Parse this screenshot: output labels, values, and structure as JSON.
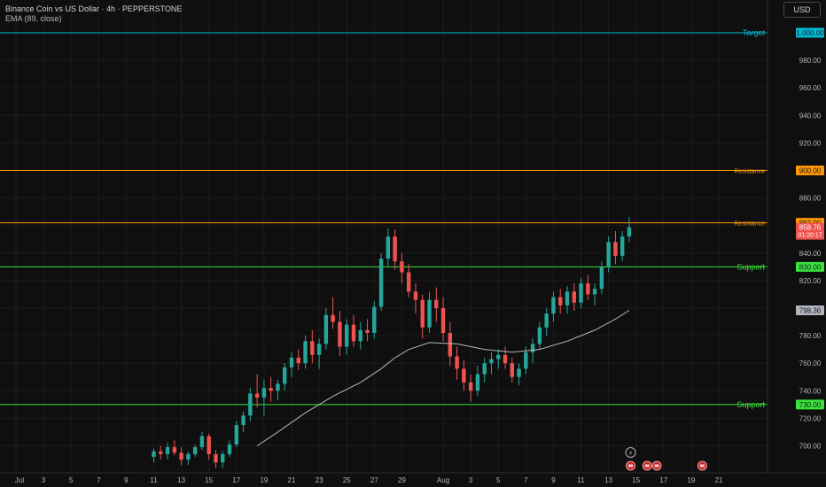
{
  "header": {
    "title": "Binance Coin vs US Dollar · 4h · PEPPERSTONE",
    "indicator": "EMA (89, close)",
    "currency_button": "USD"
  },
  "colors": {
    "background": "#0f0f0f",
    "grid": "#1c1c1c",
    "up": "#26a69a",
    "down": "#ef5350",
    "ema": "#d1d4dc",
    "target": "#00bcd4",
    "resistance": "#ff9800",
    "support": "#39e43a"
  },
  "chart_data": {
    "type": "candlestick",
    "symbol": "Binance Coin vs US Dollar",
    "interval": "4h",
    "ylim": [
      690,
      1005
    ],
    "y_ticks": [
      700,
      720,
      740,
      760,
      780,
      800,
      820,
      840,
      860,
      880,
      900,
      920,
      940,
      960,
      980
    ],
    "x_ticks": [
      "Jul",
      "3",
      "5",
      "7",
      "9",
      "11",
      "13",
      "15",
      "17",
      "19",
      "21",
      "23",
      "25",
      "27",
      "29",
      "Aug",
      "3",
      "5",
      "7",
      "9",
      "11",
      "13",
      "15",
      "17",
      "19",
      "21"
    ],
    "levels": [
      {
        "label": "Target",
        "value": 1000,
        "value_label": "1,000.00",
        "kind": "target"
      },
      {
        "label": "Resistance",
        "value": 900,
        "value_label": "900.00",
        "kind": "resistance"
      },
      {
        "label": "Resistance",
        "value": 862,
        "value_label": "862.00",
        "kind": "resistance"
      },
      {
        "label": "Support",
        "value": 830,
        "value_label": "830.00",
        "kind": "support"
      },
      {
        "label": "Support",
        "value": 730,
        "value_label": "730.00",
        "kind": "support"
      }
    ],
    "ema": {
      "name": "EMA (89, close)",
      "last_value": 798.36,
      "last_label": "798.36",
      "points": [
        [
          18.5,
          700
        ],
        [
          20,
          710
        ],
        [
          22,
          724
        ],
        [
          24,
          736
        ],
        [
          26,
          746
        ],
        [
          27.5,
          756
        ],
        [
          28.5,
          764
        ],
        [
          29.5,
          770
        ],
        [
          31,
          775
        ],
        [
          33,
          774
        ],
        [
          35,
          770
        ],
        [
          37,
          768
        ],
        [
          39,
          770
        ],
        [
          41,
          776
        ],
        [
          43,
          784
        ],
        [
          44.5,
          792
        ],
        [
          45.5,
          798.4
        ]
      ]
    },
    "last_price": {
      "value": 858.76,
      "label": "858.76",
      "countdown": "01:20:17"
    },
    "candles": [
      {
        "d": 11.0,
        "o": 692,
        "h": 698,
        "l": 688,
        "c": 696
      },
      {
        "d": 11.5,
        "o": 696,
        "h": 700,
        "l": 690,
        "c": 694
      },
      {
        "d": 12.0,
        "o": 694,
        "h": 702,
        "l": 690,
        "c": 699
      },
      {
        "d": 12.5,
        "o": 699,
        "h": 704,
        "l": 693,
        "c": 695
      },
      {
        "d": 13.0,
        "o": 695,
        "h": 699,
        "l": 686,
        "c": 690
      },
      {
        "d": 13.5,
        "o": 690,
        "h": 696,
        "l": 686,
        "c": 694
      },
      {
        "d": 14.0,
        "o": 694,
        "h": 701,
        "l": 692,
        "c": 699
      },
      {
        "d": 14.5,
        "o": 699,
        "h": 710,
        "l": 697,
        "c": 707
      },
      {
        "d": 15.0,
        "o": 707,
        "h": 709,
        "l": 690,
        "c": 694
      },
      {
        "d": 15.5,
        "o": 694,
        "h": 697,
        "l": 684,
        "c": 688
      },
      {
        "d": 16.0,
        "o": 688,
        "h": 696,
        "l": 684,
        "c": 694
      },
      {
        "d": 16.5,
        "o": 694,
        "h": 704,
        "l": 692,
        "c": 701
      },
      {
        "d": 17.0,
        "o": 701,
        "h": 718,
        "l": 699,
        "c": 715
      },
      {
        "d": 17.5,
        "o": 715,
        "h": 725,
        "l": 710,
        "c": 722
      },
      {
        "d": 18.0,
        "o": 722,
        "h": 742,
        "l": 718,
        "c": 738
      },
      {
        "d": 18.5,
        "o": 738,
        "h": 752,
        "l": 728,
        "c": 735
      },
      {
        "d": 19.0,
        "o": 735,
        "h": 748,
        "l": 722,
        "c": 742
      },
      {
        "d": 19.5,
        "o": 742,
        "h": 750,
        "l": 732,
        "c": 740
      },
      {
        "d": 20.0,
        "o": 740,
        "h": 748,
        "l": 733,
        "c": 745
      },
      {
        "d": 20.5,
        "o": 745,
        "h": 760,
        "l": 740,
        "c": 757
      },
      {
        "d": 21.0,
        "o": 757,
        "h": 768,
        "l": 750,
        "c": 764
      },
      {
        "d": 21.5,
        "o": 764,
        "h": 770,
        "l": 755,
        "c": 760
      },
      {
        "d": 22.0,
        "o": 760,
        "h": 780,
        "l": 756,
        "c": 776
      },
      {
        "d": 22.5,
        "o": 776,
        "h": 784,
        "l": 760,
        "c": 766
      },
      {
        "d": 23.0,
        "o": 766,
        "h": 778,
        "l": 756,
        "c": 774
      },
      {
        "d": 23.5,
        "o": 774,
        "h": 800,
        "l": 770,
        "c": 795
      },
      {
        "d": 24.0,
        "o": 795,
        "h": 808,
        "l": 785,
        "c": 790
      },
      {
        "d": 24.5,
        "o": 790,
        "h": 798,
        "l": 765,
        "c": 772
      },
      {
        "d": 25.0,
        "o": 772,
        "h": 792,
        "l": 766,
        "c": 788
      },
      {
        "d": 25.5,
        "o": 788,
        "h": 795,
        "l": 772,
        "c": 776
      },
      {
        "d": 26.0,
        "o": 776,
        "h": 790,
        "l": 770,
        "c": 784
      },
      {
        "d": 26.5,
        "o": 784,
        "h": 792,
        "l": 776,
        "c": 782
      },
      {
        "d": 27.0,
        "o": 782,
        "h": 805,
        "l": 778,
        "c": 801
      },
      {
        "d": 27.5,
        "o": 801,
        "h": 840,
        "l": 798,
        "c": 836
      },
      {
        "d": 28.0,
        "o": 836,
        "h": 858,
        "l": 830,
        "c": 852
      },
      {
        "d": 28.5,
        "o": 852,
        "h": 857,
        "l": 828,
        "c": 834
      },
      {
        "d": 29.0,
        "o": 834,
        "h": 840,
        "l": 818,
        "c": 826
      },
      {
        "d": 29.5,
        "o": 826,
        "h": 832,
        "l": 808,
        "c": 812
      },
      {
        "d": 30.0,
        "o": 812,
        "h": 818,
        "l": 796,
        "c": 806
      },
      {
        "d": 30.5,
        "o": 806,
        "h": 810,
        "l": 778,
        "c": 786
      },
      {
        "d": 31.0,
        "o": 786,
        "h": 812,
        "l": 782,
        "c": 806
      },
      {
        "d": 31.5,
        "o": 806,
        "h": 815,
        "l": 790,
        "c": 800
      },
      {
        "d": 32.0,
        "o": 800,
        "h": 808,
        "l": 776,
        "c": 782
      },
      {
        "d": 32.5,
        "o": 782,
        "h": 790,
        "l": 758,
        "c": 765
      },
      {
        "d": 33.0,
        "o": 765,
        "h": 772,
        "l": 748,
        "c": 756
      },
      {
        "d": 33.5,
        "o": 756,
        "h": 762,
        "l": 740,
        "c": 746
      },
      {
        "d": 34.0,
        "o": 746,
        "h": 752,
        "l": 732,
        "c": 740
      },
      {
        "d": 34.5,
        "o": 740,
        "h": 758,
        "l": 736,
        "c": 752
      },
      {
        "d": 35.0,
        "o": 752,
        "h": 764,
        "l": 746,
        "c": 760
      },
      {
        "d": 35.5,
        "o": 760,
        "h": 768,
        "l": 752,
        "c": 763
      },
      {
        "d": 36.0,
        "o": 763,
        "h": 770,
        "l": 756,
        "c": 766
      },
      {
        "d": 36.5,
        "o": 766,
        "h": 772,
        "l": 756,
        "c": 760
      },
      {
        "d": 37.0,
        "o": 760,
        "h": 764,
        "l": 746,
        "c": 750
      },
      {
        "d": 37.5,
        "o": 750,
        "h": 760,
        "l": 744,
        "c": 756
      },
      {
        "d": 38.0,
        "o": 756,
        "h": 772,
        "l": 752,
        "c": 768
      },
      {
        "d": 38.5,
        "o": 768,
        "h": 778,
        "l": 760,
        "c": 774
      },
      {
        "d": 39.0,
        "o": 774,
        "h": 790,
        "l": 770,
        "c": 786
      },
      {
        "d": 39.5,
        "o": 786,
        "h": 800,
        "l": 780,
        "c": 796
      },
      {
        "d": 40.0,
        "o": 796,
        "h": 812,
        "l": 790,
        "c": 808
      },
      {
        "d": 40.5,
        "o": 808,
        "h": 814,
        "l": 796,
        "c": 802
      },
      {
        "d": 41.0,
        "o": 802,
        "h": 816,
        "l": 796,
        "c": 812
      },
      {
        "d": 41.5,
        "o": 812,
        "h": 818,
        "l": 798,
        "c": 804
      },
      {
        "d": 42.0,
        "o": 804,
        "h": 822,
        "l": 800,
        "c": 818
      },
      {
        "d": 42.5,
        "o": 818,
        "h": 824,
        "l": 806,
        "c": 810
      },
      {
        "d": 43.0,
        "o": 810,
        "h": 818,
        "l": 802,
        "c": 814
      },
      {
        "d": 43.5,
        "o": 814,
        "h": 834,
        "l": 810,
        "c": 830
      },
      {
        "d": 44.0,
        "o": 830,
        "h": 852,
        "l": 826,
        "c": 848
      },
      {
        "d": 44.5,
        "o": 848,
        "h": 856,
        "l": 832,
        "c": 838
      },
      {
        "d": 45.0,
        "o": 838,
        "h": 856,
        "l": 834,
        "c": 852
      },
      {
        "d": 45.5,
        "o": 852,
        "h": 866,
        "l": 848,
        "c": 858.76
      }
    ]
  }
}
